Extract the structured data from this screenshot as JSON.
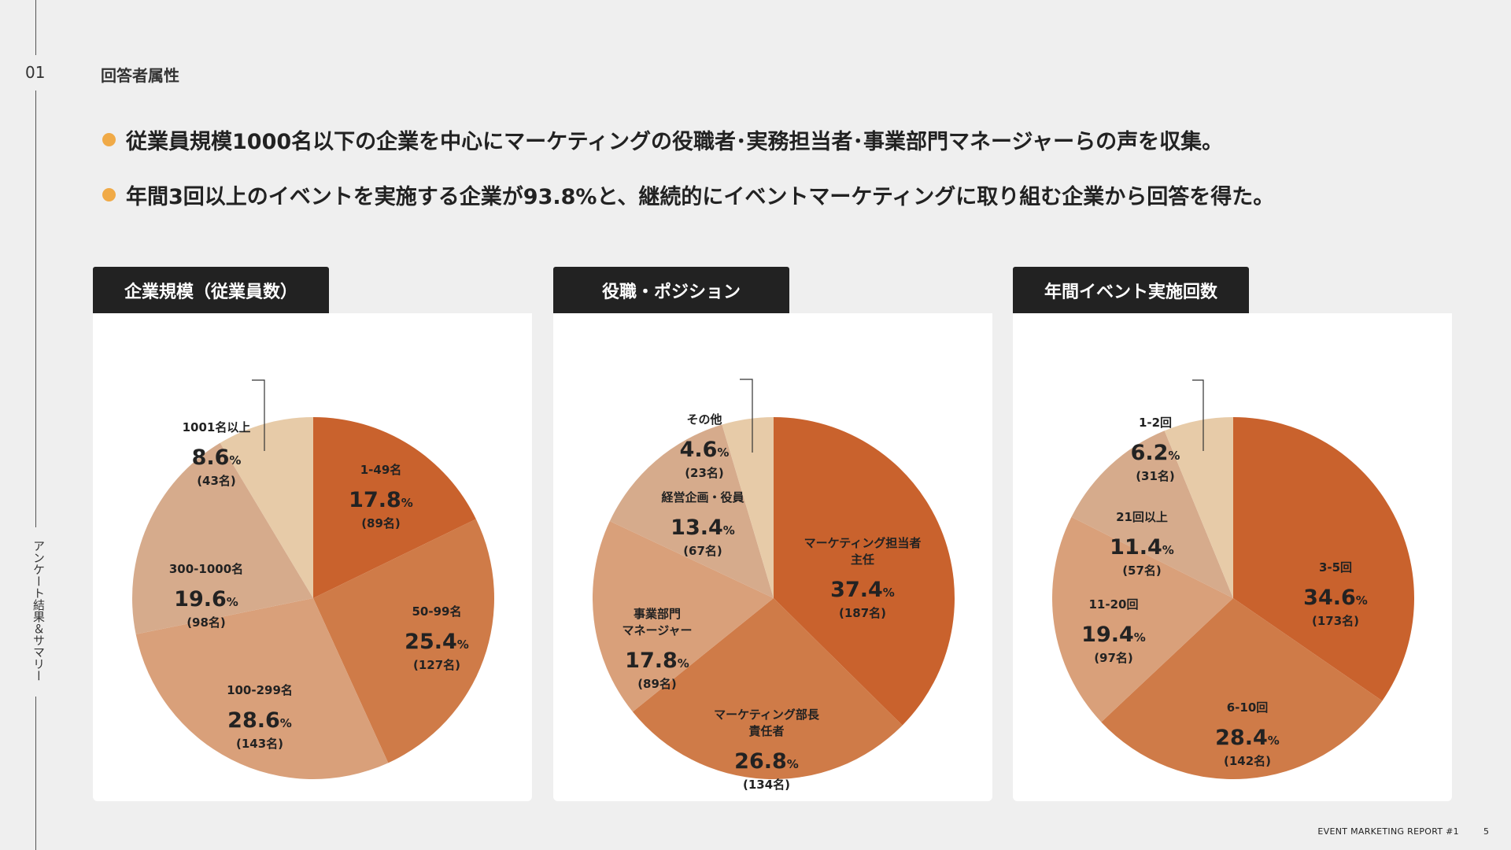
{
  "section": {
    "number": "01",
    "title": "回答者属性"
  },
  "side_label": "アンケート結果＆サマリー",
  "bullets": [
    "従業員規模1000名以下の企業を中心にマーケティングの役職者･実務担当者･事業部門マネージャーらの声を収集。",
    "年間3回以上のイベントを実施する企業が93.8%と、継続的にイベントマーケティングに取り組む企業から回答を得た。"
  ],
  "footer": {
    "report": "EVENT MARKETING REPORT #1",
    "page": "5"
  },
  "colors": {
    "c1": "#c9622d",
    "c2": "#cf7b48",
    "c3": "#d9a07a",
    "c4": "#d6ab8c",
    "c5": "#e7cba8",
    "accent": "#f0aa47"
  },
  "chart_data": [
    {
      "type": "pie",
      "title": "企業規模（従業員数）",
      "slices": [
        {
          "label": [
            "1-49名"
          ],
          "percent": 17.8,
          "count": "(89名)",
          "color": "#c9622d"
        },
        {
          "label": [
            "50-99名"
          ],
          "percent": 25.4,
          "count": "(127名)",
          "color": "#cf7b48"
        },
        {
          "label": [
            "100-299名"
          ],
          "percent": 28.6,
          "count": "(143名)",
          "color": "#d9a07a"
        },
        {
          "label": [
            "300-1000名"
          ],
          "percent": 19.6,
          "count": "(98名)",
          "color": "#d6ab8c"
        },
        {
          "label": [
            "1001名以上"
          ],
          "percent": 8.6,
          "count": "(43名)",
          "color": "#e7cba8"
        }
      ],
      "percent_unit": "%"
    },
    {
      "type": "pie",
      "title": "役職・ポジション",
      "slices": [
        {
          "label": [
            "マーケティング担当者",
            "主任"
          ],
          "percent": 37.4,
          "count": "(187名)",
          "color": "#c9622d"
        },
        {
          "label": [
            "マーケティング部長",
            "責任者"
          ],
          "percent": 26.8,
          "count": "(134名)",
          "color": "#cf7b48"
        },
        {
          "label": [
            "事業部門",
            "マネージャー"
          ],
          "percent": 17.8,
          "count": "(89名)",
          "color": "#d9a07a"
        },
        {
          "label": [
            "経営企画・役員"
          ],
          "percent": 13.4,
          "count": "(67名)",
          "color": "#d6ab8c"
        },
        {
          "label": [
            "その他"
          ],
          "percent": 4.6,
          "count": "(23名)",
          "color": "#e7cba8"
        }
      ],
      "percent_unit": "%"
    },
    {
      "type": "pie",
      "title": "年間イベント実施回数",
      "slices": [
        {
          "label": [
            "3-5回"
          ],
          "percent": 34.6,
          "count": "(173名)",
          "color": "#c9622d"
        },
        {
          "label": [
            "6-10回"
          ],
          "percent": 28.4,
          "count": "(142名)",
          "color": "#cf7b48"
        },
        {
          "label": [
            "11-20回"
          ],
          "percent": 19.4,
          "count": "(97名)",
          "color": "#d9a07a"
        },
        {
          "label": [
            "21回以上"
          ],
          "percent": 11.4,
          "count": "(57名)",
          "color": "#d6ab8c"
        },
        {
          "label": [
            "1-2回"
          ],
          "percent": 6.2,
          "count": "(31名)",
          "color": "#e7cba8"
        }
      ],
      "percent_unit": "%"
    }
  ]
}
